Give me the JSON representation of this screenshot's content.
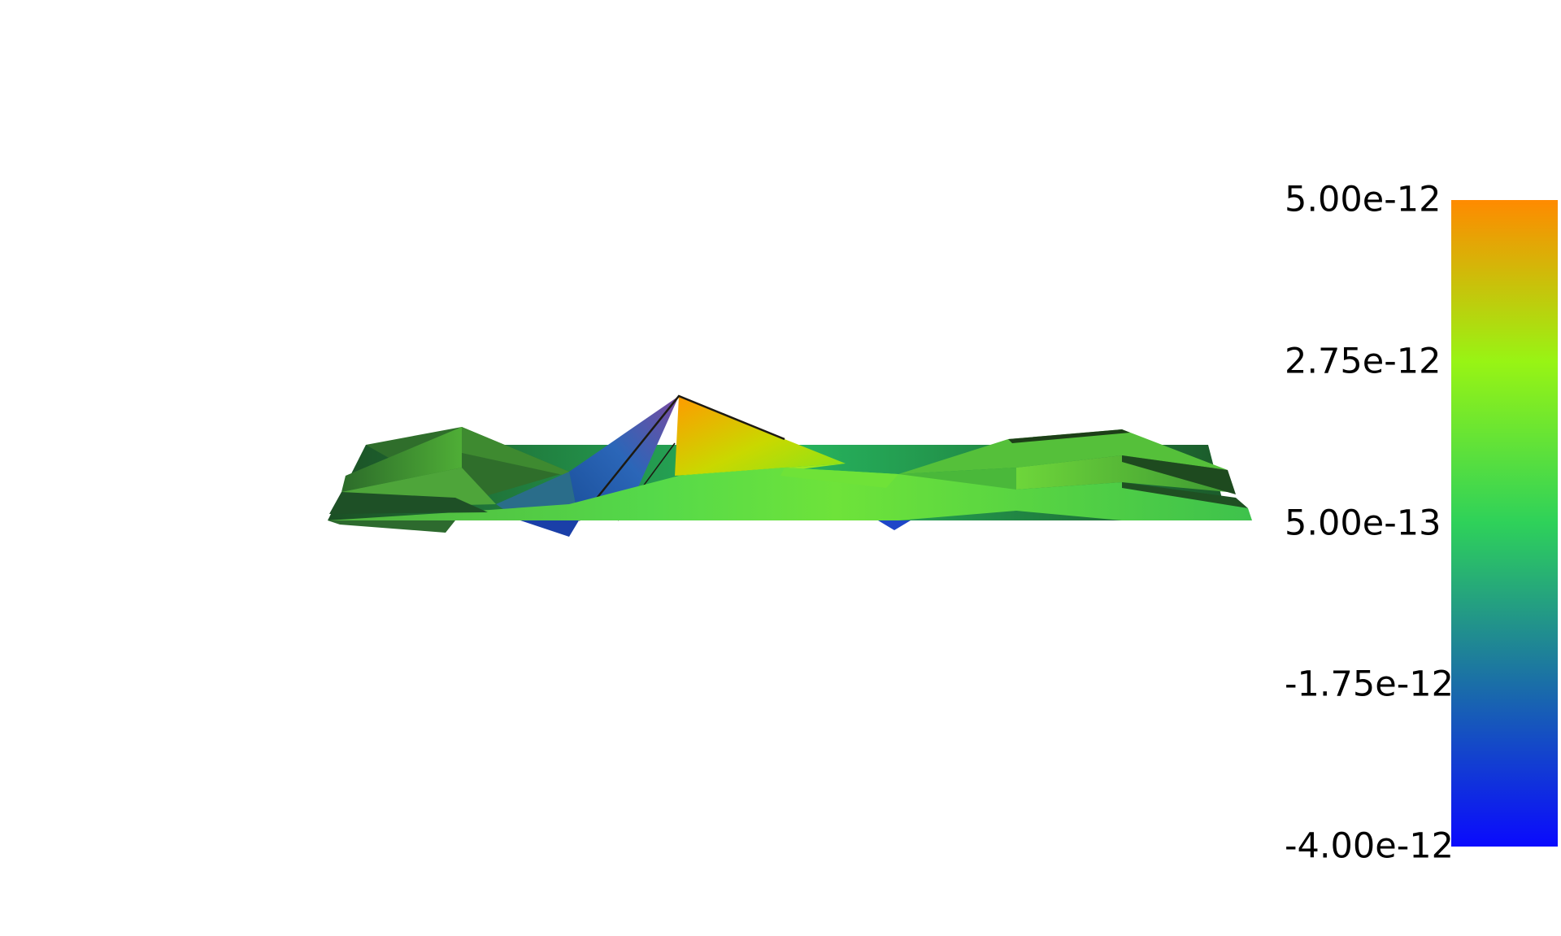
{
  "chart_data": {
    "type": "heatmap",
    "render": "3d-surface",
    "title": "",
    "xlabel": "",
    "ylabel": "",
    "colormap": {
      "name": "blue-green-orange",
      "stops": [
        {
          "value": -4e-12,
          "color": "#0a0afe"
        },
        {
          "value": -1.75e-12,
          "color": "#1a6ea8"
        },
        {
          "value": 5e-13,
          "color": "#2ed15a"
        },
        {
          "value": 2.75e-12,
          "color": "#98f414"
        },
        {
          "value": 5e-12,
          "color": "#ff8a00"
        }
      ]
    },
    "colorbar": {
      "range": [
        -4e-12,
        5e-12
      ],
      "ticks": [
        "5.00e-12",
        "2.75e-12",
        "5.00e-13",
        "-1.75e-12",
        "-4.00e-12"
      ],
      "tick_values": [
        5e-12,
        2.75e-12,
        5e-13,
        -1.75e-12,
        -4e-12
      ]
    },
    "grid": false,
    "legend": "right"
  }
}
